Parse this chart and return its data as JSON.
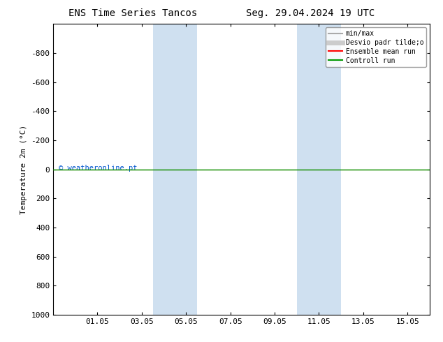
{
  "title_left": "ENS Time Series Tancos",
  "title_right": "Seg. 29.04.2024 19 UTC",
  "ylabel": "Temperature 2m (°C)",
  "ylim_bottom": -1000,
  "ylim_top": 1000,
  "yticks": [
    -800,
    -600,
    -400,
    -200,
    0,
    200,
    400,
    600,
    800,
    1000
  ],
  "xtick_labels": [
    "01.05",
    "03.05",
    "05.05",
    "07.05",
    "09.05",
    "11.05",
    "13.05",
    "15.05"
  ],
  "xtick_positions": [
    2,
    4,
    6,
    8,
    10,
    12,
    14,
    16
  ],
  "x_min": 0,
  "x_max": 17,
  "green_line_y": 0,
  "red_line_y": 0,
  "shaded_bands": [
    {
      "x_start": 4.5,
      "x_end": 6.5
    },
    {
      "x_start": 11.0,
      "x_end": 13.0
    }
  ],
  "shade_color": "#cfe0f0",
  "shade_alpha": 1.0,
  "background_color": "#ffffff",
  "watermark_text": "© weatheronline.pt",
  "watermark_color": "#0055cc",
  "legend_labels": [
    "min/max",
    "Desvio padr tilde;o",
    "Ensemble mean run",
    "Controll run"
  ],
  "legend_line_colors": [
    "#aaaaaa",
    "#cccccc",
    "#ff0000",
    "#009900"
  ],
  "title_fontsize": 10,
  "tick_fontsize": 8,
  "ylabel_fontsize": 8
}
